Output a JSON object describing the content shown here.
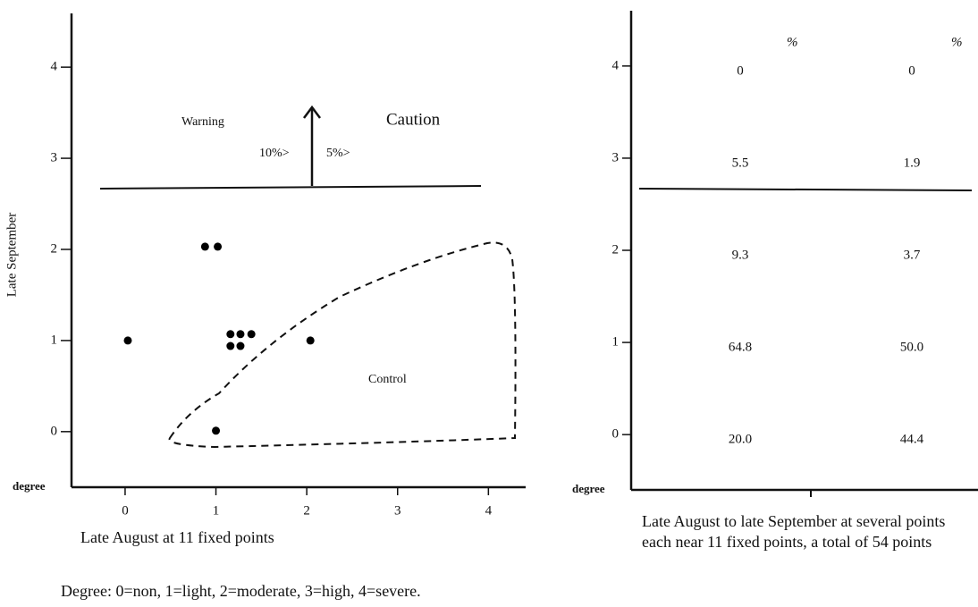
{
  "chart_data": [
    {
      "type": "scatter",
      "ylabel": "Late September",
      "xlabel": "Late August at 11 fixed points",
      "axis_note": "degree",
      "xlim": [
        -0.59,
        4.41
      ],
      "ylim": [
        -0.61,
        4.59
      ],
      "xticks": [
        0,
        1,
        2,
        3,
        4
      ],
      "yticks": [
        0,
        1,
        2,
        3,
        4
      ],
      "x": [
        0.03,
        1.0,
        0.88,
        1.02,
        1.16,
        1.27,
        1.39,
        1.16,
        1.27,
        2.04
      ],
      "values": [
        1.0,
        0.01,
        2.03,
        2.03,
        1.07,
        1.07,
        1.07,
        0.94,
        0.94,
        1.0
      ],
      "color": "#000000",
      "annotations": [
        "Warning",
        "Caution",
        "10%>",
        "5%>",
        "Control"
      ]
    },
    {
      "type": "text-grid",
      "axis_note": "degree",
      "xlabel": "Late August to late September at several points each near 11 fixed points, a total of 54 points",
      "ylim": [
        -0.6,
        4.6
      ],
      "yticks": [
        0,
        1,
        2,
        3,
        4
      ],
      "y": [
        4,
        3,
        2,
        1,
        0
      ],
      "series": [
        {
          "name": "%",
          "values": [
            0,
            5.5,
            9.3,
            64.8,
            20.0
          ],
          "value_labels": [
            "0",
            "5.5",
            "9.3",
            "64.8",
            "20.0"
          ]
        },
        {
          "name": "%",
          "values": [
            0,
            1.9,
            3.7,
            50.0,
            44.4
          ],
          "value_labels": [
            "0",
            "1.9",
            "3.7",
            "50.0",
            "44.4"
          ]
        }
      ]
    }
  ],
  "caption": "Degree: 0=non, 1=light, 2=moderate, 3=high, 4=severe."
}
